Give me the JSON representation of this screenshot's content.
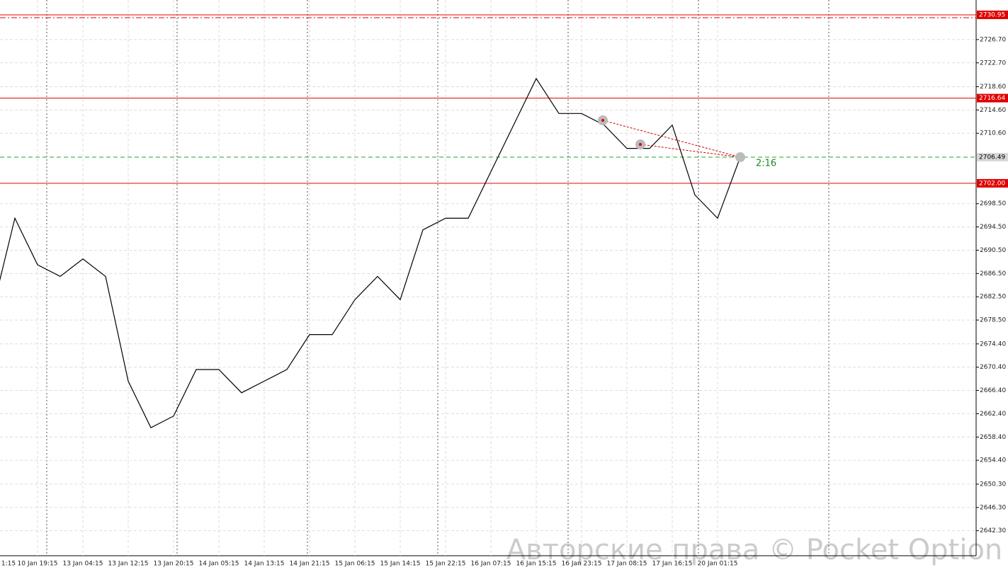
{
  "chart_data": {
    "type": "line",
    "color": "#000000",
    "categories": [
      "1:15",
      null,
      "10 Jan 19:15",
      null,
      "13 Jan 04:15",
      null,
      "13 Jan 12:15",
      null,
      "13 Jan 20:15",
      null,
      "14 Jan 05:15",
      null,
      "14 Jan 13:15",
      null,
      "14 Jan 21:15",
      null,
      "15 Jan 06:15",
      null,
      "15 Jan 14:15",
      null,
      "15 Jan 22:15",
      null,
      "16 Jan 07:15",
      null,
      "16 Jan 15:15",
      null,
      "16 Jan 23:15",
      null,
      "17 Jan 08:15",
      null,
      "17 Jan 16:15",
      null,
      "20 Jan 01:15",
      null
    ],
    "values": [
      2680,
      2696,
      2688,
      2686,
      2689,
      2686,
      2668,
      2660,
      2662,
      2670,
      2670,
      2666,
      2668,
      2670,
      2676,
      2676,
      2682,
      2686,
      2682,
      2694,
      2696,
      2696,
      2704,
      2712,
      2720,
      2714,
      2714,
      2712,
      2708,
      2708,
      2712,
      2700,
      2696,
      2706.49
    ],
    "ylim": [
      2638.0,
      2733.5
    ],
    "yticks": [
      {
        "value": 2726.7,
        "label": "2726.70"
      },
      {
        "value": 2722.7,
        "label": "2722.70"
      },
      {
        "value": 2718.6,
        "label": "2718.60"
      },
      {
        "value": 2714.6,
        "label": "2714.60"
      },
      {
        "value": 2710.6,
        "label": "2710.60"
      },
      {
        "value": 2698.5,
        "label": "2698.50"
      },
      {
        "value": 2694.5,
        "label": "2694.50"
      },
      {
        "value": 2690.5,
        "label": "2690.50"
      },
      {
        "value": 2686.5,
        "label": "2686.50"
      },
      {
        "value": 2682.5,
        "label": "2682.50"
      },
      {
        "value": 2678.5,
        "label": "2678.50"
      },
      {
        "value": 2674.4,
        "label": "2674.40"
      },
      {
        "value": 2670.4,
        "label": "2670.40"
      },
      {
        "value": 2666.4,
        "label": "2666.40"
      },
      {
        "value": 2662.4,
        "label": "2662.40"
      },
      {
        "value": 2658.4,
        "label": "2658.40"
      },
      {
        "value": 2654.4,
        "label": "2654.40"
      },
      {
        "value": 2650.3,
        "label": "2650.30"
      },
      {
        "value": 2646.3,
        "label": "2646.30"
      },
      {
        "value": 2642.3,
        "label": "2642.30"
      }
    ],
    "grid": true,
    "levels": [
      {
        "value": 2730.95,
        "color": "#e00000"
      },
      {
        "value": 2716.64,
        "color": "#e00000"
      },
      {
        "value": 2706.49,
        "color": "#22aa22"
      },
      {
        "value": {
          "value": 2702,
          "label": "2702.00"
        },
        "color": "#e00000"
      }
    ],
    "annotation": "2:16",
    "watermark": "Авторские права © Pocket Option"
  }
}
